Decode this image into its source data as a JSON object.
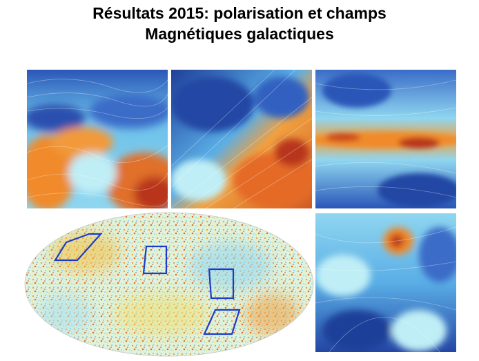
{
  "slide": {
    "title_line1": "Résultats 2015: polarisation et champs",
    "title_line2": "Magnétiques galactiques"
  },
  "colors": {
    "deep_blue": "#1f3f99",
    "light_blue": "#8fd6f0",
    "cyan": "#bfeef6",
    "orange": "#f08a2a",
    "red": "#b8361a",
    "box_outline": "#1a3cc8"
  }
}
